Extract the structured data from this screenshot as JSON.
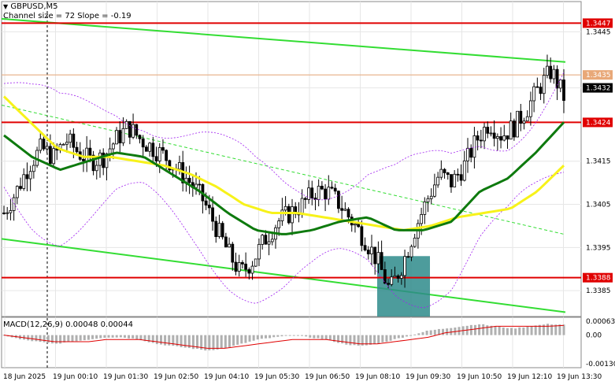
{
  "header": {
    "symbol": "GBPUSD,M5",
    "channel_info": "Channel size = 72 Slope = -0.19"
  },
  "macd_header": "MACD(12,26,9) 0.00048 0.00044",
  "colors": {
    "background": "#ffffff",
    "bull": "#000000",
    "bear": "#000000",
    "ma_fast": "#0e7a0e",
    "ma_slow": "#f7f21a",
    "channel": "#33dd33",
    "envelope": "#a020f0",
    "level_line": "#e00000",
    "bid_line": "#e8a878",
    "highlight": "#2e8b8b",
    "histogram": "#b0b0b0",
    "signal": "#e00000"
  },
  "chart_data": {
    "type": "candlestick",
    "symbol": "GBPUSD",
    "timeframe": "M5",
    "y_range": [
      1.3379,
      1.3452
    ],
    "y_ticks": [
      "1.3445",
      "1.3435",
      "1.3432",
      "1.3415",
      "1.3405",
      "1.3395",
      "1.3385"
    ],
    "price_levels": [
      {
        "label": "1.3447",
        "value": 1.3447
      },
      {
        "label": "1.3424",
        "value": 1.3424
      },
      {
        "label": "1.3388",
        "value": 1.3388
      }
    ],
    "bid": {
      "label": "1.3435",
      "value": 1.3435
    },
    "last": {
      "label": "1.3432",
      "value": 1.3432
    },
    "x_labels": [
      "18 Jun 2025",
      "19 Jun 00:10",
      "19 Jun 01:30",
      "19 Jun 02:50",
      "19 Jun 04:10",
      "19 Jun 05:30",
      "19 Jun 06:50",
      "19 Jun 08:10",
      "19 Jun 09:30",
      "19 Jun 10:50",
      "19 Jun 12:10",
      "19 Jun 13:30"
    ],
    "price_path": [
      1.3403,
      1.3408,
      1.3414,
      1.3418,
      1.3416,
      1.342,
      1.3417,
      1.3415,
      1.3416,
      1.342,
      1.3423,
      1.342,
      1.3418,
      1.3416,
      1.3413,
      1.341,
      1.3406,
      1.34,
      1.3394,
      1.3389,
      1.3392,
      1.3397,
      1.3401,
      1.3403,
      1.3405,
      1.3408,
      1.3408,
      1.3405,
      1.3401,
      1.3397,
      1.3392,
      1.3385,
      1.3391,
      1.3399,
      1.3406,
      1.3412,
      1.341,
      1.3414,
      1.342,
      1.3424,
      1.3421,
      1.3423,
      1.3427,
      1.3432,
      1.3436,
      1.343
    ],
    "ma_fast": [
      1.3421,
      1.3416,
      1.3413,
      1.3415,
      1.3417,
      1.3416,
      1.3412,
      1.3408,
      1.3403,
      1.3399,
      1.3398,
      1.3399,
      1.3401,
      1.3402,
      1.3399,
      1.3399,
      1.3401,
      1.3408,
      1.3411,
      1.3417,
      1.3424
    ],
    "ma_slow": [
      1.343,
      1.3424,
      1.3418,
      1.3416,
      1.3416,
      1.3415,
      1.3414,
      1.3412,
      1.3409,
      1.3405,
      1.3403,
      1.3403,
      1.3402,
      1.3401,
      1.34,
      1.3399,
      1.34,
      1.3402,
      1.3403,
      1.3404,
      1.3408,
      1.3414
    ],
    "channel_upper": {
      "from": 1.3448,
      "to": 1.3438
    },
    "channel_mid": {
      "from": 1.3428,
      "to": 1.3398
    },
    "channel_lower": {
      "from": 1.3397,
      "to": 1.338
    },
    "highlight_zone": {
      "time_from": "19 Jun 08:20",
      "time_to": "19 Jun 09:15",
      "price_from": 1.3379,
      "price_to": 1.3393
    },
    "macd": {
      "name": "MACD(12,26,9)",
      "main": 0.00048,
      "signal": 0.00044,
      "y_ticks": [
        "0.00063",
        "0.00",
        "-0.00130"
      ],
      "histogram": [
        0.0,
        -0.0002,
        -0.0003,
        -0.0004,
        -0.0003,
        -0.0002,
        -0.0001,
        -0.0001,
        -0.0002,
        -0.0004,
        -0.0005,
        -0.0006,
        -0.0007,
        -0.0006,
        -0.0004,
        -0.0002,
        -0.0001,
        0.0,
        -0.0001,
        -0.0002,
        -0.0004,
        -0.0005,
        -0.0004,
        -0.0002,
        0.0,
        0.0002,
        0.0003,
        0.0004,
        0.0005,
        0.0004,
        0.0003,
        0.0004,
        0.0005,
        0.00048
      ],
      "signal_line": [
        0.0,
        -0.0001,
        -0.0002,
        -0.0003,
        -0.0003,
        -0.0003,
        -0.0002,
        -0.0002,
        -0.0002,
        -0.0003,
        -0.0004,
        -0.0005,
        -0.0006,
        -0.0006,
        -0.0005,
        -0.0004,
        -0.0003,
        -0.0002,
        -0.0002,
        -0.0002,
        -0.0003,
        -0.0004,
        -0.0004,
        -0.0003,
        -0.0002,
        -0.0001,
        0.0001,
        0.0002,
        0.0003,
        0.0004,
        0.0004,
        0.0004,
        0.0004,
        0.00044
      ]
    }
  }
}
